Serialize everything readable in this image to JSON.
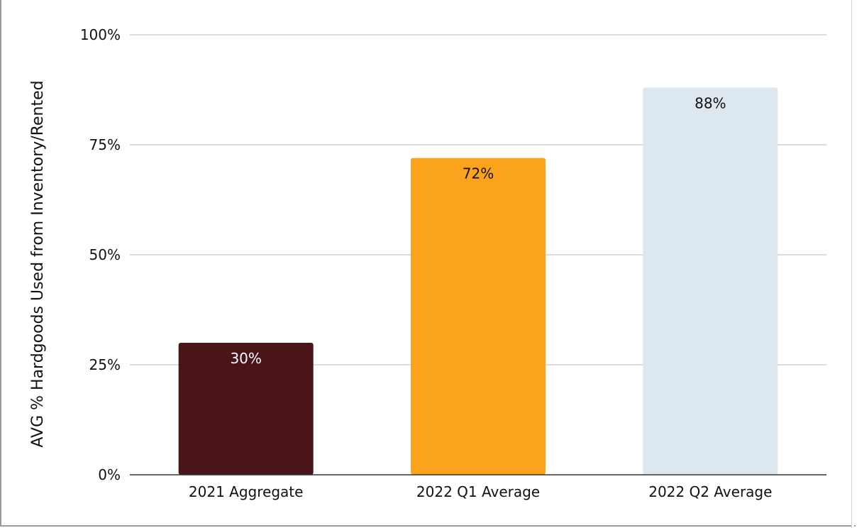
{
  "chart_data": {
    "type": "bar",
    "title": "",
    "xlabel": "",
    "ylabel": "AVG % Hardgoods Used from Inventory/Rented",
    "categories": [
      "2021 Aggregate",
      "2022 Q1 Average",
      "2022 Q2 Average"
    ],
    "values": [
      30,
      72,
      88
    ],
    "data_labels": [
      "30%",
      "72%",
      "88%"
    ],
    "bar_colors": [
      "#4a1518",
      "#fba31c",
      "#dce7f0"
    ],
    "label_colors": [
      "#ffffff",
      "#111111",
      "#111111"
    ],
    "ylim": [
      0,
      100
    ],
    "yticks": [
      0,
      25,
      50,
      75,
      100
    ],
    "ytick_labels": [
      "0%",
      "25%",
      "50%",
      "75%",
      "100%"
    ],
    "grid": true,
    "grid_color": "#c8c8c8",
    "legend": "none"
  }
}
